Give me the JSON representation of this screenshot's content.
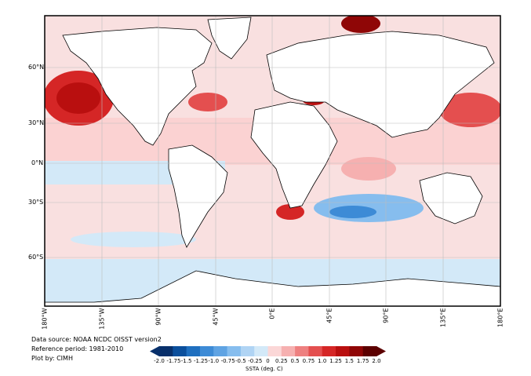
{
  "map": {
    "lat_labels": [
      "60°N",
      "30°N",
      "0°N",
      "30°S",
      "60°S"
    ],
    "lon_labels": [
      "180°W",
      "135°W",
      "90°W",
      "45°W",
      "0°E",
      "45°E",
      "90°E",
      "135°E",
      "180°E"
    ]
  },
  "credits": {
    "source": "Data source: NOAA NCDC OISST version2",
    "reference": "Reference period: 1981-2010",
    "plot_by": "Plot by: CIMH"
  },
  "colorbar": {
    "title": "SSTA (deg. C)",
    "ticks": [
      "-2.0",
      "-1.75",
      "-1.5",
      "-1.25",
      "-1.0",
      "-0.75",
      "-0.5",
      "-0.25",
      "0",
      "0.25",
      "0.5",
      "0.75",
      "1.0",
      "1.25",
      "1.5",
      "1.75",
      "2.0"
    ],
    "colors": [
      "#08306b",
      "#0b4f9c",
      "#1f6fbf",
      "#3d8bd6",
      "#5fa3e3",
      "#86bdee",
      "#b0d4f4",
      "#d3e9f8",
      "#ffffff",
      "#fbd7d7",
      "#f6b0b0",
      "#ee8080",
      "#e44f4f",
      "#d52626",
      "#b90f0f",
      "#8f0606",
      "#5c0000"
    ]
  },
  "colors": {
    "ocean_neutral": "#ffffff",
    "land": "#ffffff",
    "warm_light": "#f6b0b0",
    "warm_strong": "#d52626",
    "cool_light": "#b0d4f4",
    "cool_medium": "#86bdee"
  }
}
